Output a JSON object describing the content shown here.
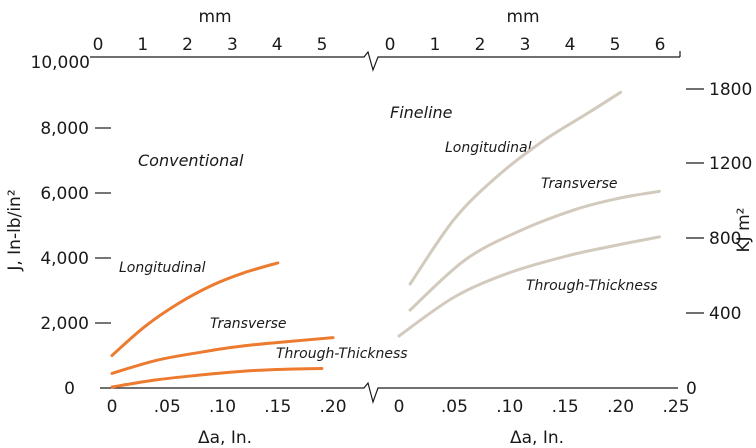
{
  "chart_data": {
    "type": "line",
    "title": "",
    "colors": {
      "conventional": "#ec7a2f",
      "fineline": "#d2cabc",
      "axis": "#1a1a1a"
    },
    "left_axis": {
      "label": "J, In-lb/in²",
      "ticks": [
        0,
        2000,
        4000,
        6000,
        8000,
        10000
      ],
      "tick_labels": [
        "0",
        "2,000",
        "4,000",
        "6,000",
        "8,000",
        "10,000"
      ],
      "ylim": [
        0,
        10000
      ]
    },
    "right_axis": {
      "label": "KJ m²",
      "ticks": [
        0,
        400,
        800,
        1200,
        1800
      ],
      "tick_labels": [
        "0",
        "400",
        "800",
        "1200",
        "1800"
      ]
    },
    "panels": [
      {
        "name": "Conventional",
        "xlabel": "Δa, In.",
        "xlim": [
          0,
          0.2
        ],
        "x_ticks": [
          0,
          0.05,
          0.1,
          0.15,
          0.2
        ],
        "x_tick_labels": [
          "0",
          ".05",
          ".10",
          ".15",
          ".20"
        ],
        "top_label": "mm",
        "top_ticks": [
          0,
          1,
          2,
          3,
          4,
          5
        ],
        "top_tick_labels": [
          "0",
          "1",
          "2",
          "3",
          "4",
          "5"
        ],
        "series": [
          {
            "name": "Longitudinal",
            "x": [
              0,
              0.03,
              0.06,
              0.09,
              0.12,
              0.15
            ],
            "y": [
              1000,
              1900,
              2600,
              3150,
              3550,
              3850
            ]
          },
          {
            "name": "Transverse",
            "x": [
              0,
              0.04,
              0.08,
              0.12,
              0.16,
              0.2
            ],
            "y": [
              450,
              850,
              1100,
              1300,
              1430,
              1550
            ]
          },
          {
            "name": "Through-Thickness",
            "x": [
              0,
              0.04,
              0.08,
              0.12,
              0.16,
              0.19
            ],
            "y": [
              30,
              250,
              400,
              520,
              580,
              600
            ]
          }
        ]
      },
      {
        "name": "Fineline",
        "xlabel": "Δa, In.",
        "xlim": [
          0,
          0.25
        ],
        "x_ticks": [
          0,
          0.05,
          0.1,
          0.15,
          0.2,
          0.25
        ],
        "x_tick_labels": [
          "0",
          ".05",
          ".10",
          ".15",
          ".20",
          ".25"
        ],
        "top_label": "mm",
        "top_ticks": [
          0,
          1,
          2,
          3,
          4,
          5,
          6
        ],
        "top_tick_labels": [
          "0",
          "1",
          "2",
          "3",
          "4",
          "5",
          "6"
        ],
        "series": [
          {
            "name": "Longitudinal",
            "x": [
              0.01,
              0.05,
              0.09,
              0.13,
              0.17,
              0.2
            ],
            "y": [
              3200,
              5200,
              6550,
              7600,
              8450,
              9100
            ]
          },
          {
            "name": "Transverse",
            "x": [
              0.01,
              0.06,
              0.11,
              0.16,
              0.2,
              0.235
            ],
            "y": [
              2400,
              3950,
              4850,
              5500,
              5850,
              6050
            ]
          },
          {
            "name": "Through-Thickness",
            "x": [
              0,
              0.05,
              0.1,
              0.15,
              0.19,
              0.235
            ],
            "y": [
              1600,
              2800,
              3550,
              4050,
              4350,
              4650
            ]
          }
        ]
      }
    ],
    "annotations": [
      {
        "text": "Conventional"
      },
      {
        "text": "Longitudinal"
      },
      {
        "text": "Transverse"
      },
      {
        "text": "Through-Thickness"
      },
      {
        "text": "Fineline"
      },
      {
        "text": "Longitudinal"
      },
      {
        "text": "Transverse"
      },
      {
        "text": "Through-Thickness"
      }
    ]
  }
}
